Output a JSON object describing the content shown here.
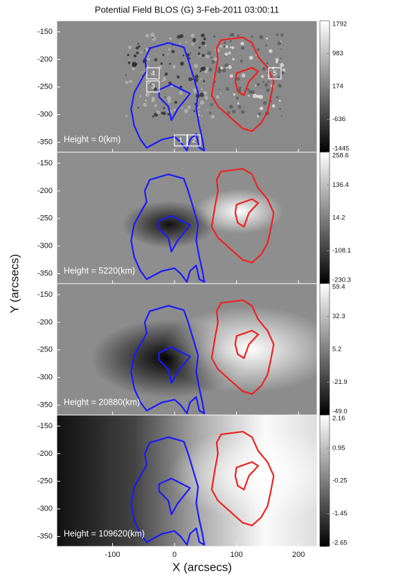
{
  "chart_data": {
    "type": "image",
    "title": "Potential Field BLOS (G) 3-Feb-2011 03:00:11",
    "xlabel": "X (arcsecs)",
    "ylabel": "Y (arcsecs)",
    "xlim": [
      -190,
      230
    ],
    "xticks": [
      -100,
      0,
      100,
      200
    ],
    "ylim": [
      -368,
      -130
    ],
    "yticks": [
      -150,
      -200,
      -250,
      -300,
      -350
    ],
    "contour_colors": [
      "#1a1aff",
      "#ee2020"
    ],
    "boxes": [
      {
        "label": "1"
      },
      {
        "label": "2"
      },
      {
        "label": "3"
      },
      {
        "label": "4"
      },
      {
        "label": "5"
      }
    ],
    "panels": [
      {
        "label": "Height = 0(km)",
        "clim": [
          -1445,
          1792
        ],
        "cticks": [
          1792,
          983,
          174,
          -636,
          -1445
        ]
      },
      {
        "label": "Height = 5220(km)",
        "clim": [
          -230.3,
          258.6
        ],
        "cticks": [
          258.6,
          136.4,
          14.2,
          -108.1,
          -230.3
        ]
      },
      {
        "label": "Height = 20880(km)",
        "clim": [
          -49,
          59.4
        ],
        "cticks": [
          59.4,
          32.3,
          5.2,
          -21.9,
          {
            "value": -49,
            "label": "-49.0"
          }
        ]
      },
      {
        "label": "Height = 109620(km)",
        "clim": [
          -2.65,
          2.16
        ],
        "cticks": [
          2.16,
          0.95,
          -0.25,
          -1.45,
          -2.65
        ]
      }
    ]
  }
}
